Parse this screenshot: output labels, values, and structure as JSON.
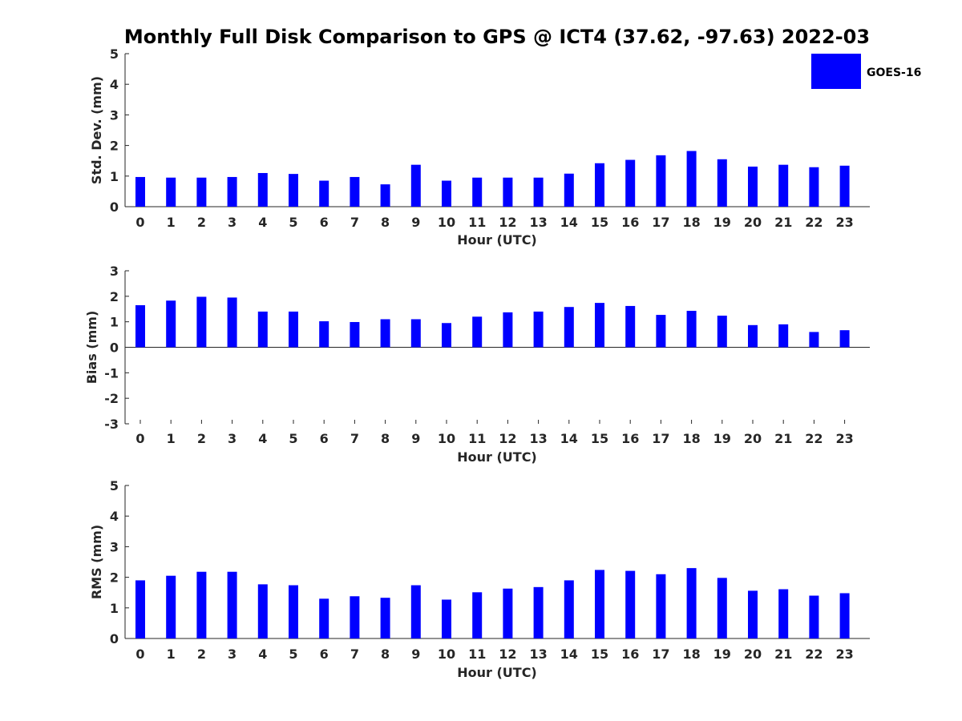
{
  "title": "Monthly Full Disk Comparison to GPS @ ICT4 (37.62, -97.63) 2022-03",
  "legend": {
    "label": "GOES-16",
    "color": "#0000ff"
  },
  "chart_data": [
    {
      "type": "bar",
      "name": "stddev",
      "xlabel": "Hour (UTC)",
      "ylabel": "Std. Dev. (mm)",
      "categories": [
        "0",
        "1",
        "2",
        "3",
        "4",
        "5",
        "6",
        "7",
        "8",
        "9",
        "10",
        "11",
        "12",
        "13",
        "14",
        "15",
        "16",
        "17",
        "18",
        "19",
        "20",
        "21",
        "22",
        "23"
      ],
      "yticks": [
        "0",
        "1",
        "2",
        "3",
        "4",
        "5"
      ],
      "ylim": [
        0,
        5
      ],
      "series": [
        {
          "name": "GOES-16",
          "color": "#0000ff",
          "values": [
            0.97,
            0.95,
            0.95,
            0.97,
            1.1,
            1.07,
            0.85,
            0.97,
            0.73,
            1.37,
            0.85,
            0.95,
            0.95,
            0.95,
            1.08,
            1.42,
            1.53,
            1.68,
            1.82,
            1.55,
            1.31,
            1.37,
            1.29,
            1.34
          ]
        }
      ]
    },
    {
      "type": "bar",
      "name": "bias",
      "xlabel": "Hour (UTC)",
      "ylabel": "Bias (mm)",
      "categories": [
        "0",
        "1",
        "2",
        "3",
        "4",
        "5",
        "6",
        "7",
        "8",
        "9",
        "10",
        "11",
        "12",
        "13",
        "14",
        "15",
        "16",
        "17",
        "18",
        "19",
        "20",
        "21",
        "22",
        "23"
      ],
      "yticks": [
        "-3",
        "-2",
        "-1",
        "0",
        "1",
        "2",
        "3"
      ],
      "ylim": [
        -3,
        3
      ],
      "series": [
        {
          "name": "GOES-16",
          "color": "#0000ff",
          "values": [
            1.65,
            1.83,
            1.98,
            1.95,
            1.4,
            1.4,
            1.02,
            0.99,
            1.1,
            1.1,
            0.95,
            1.2,
            1.37,
            1.4,
            1.58,
            1.74,
            1.62,
            1.27,
            1.43,
            1.24,
            0.87,
            0.9,
            0.6,
            0.67
          ]
        }
      ]
    },
    {
      "type": "bar",
      "name": "rms",
      "xlabel": "Hour (UTC)",
      "ylabel": "RMS (mm)",
      "categories": [
        "0",
        "1",
        "2",
        "3",
        "4",
        "5",
        "6",
        "7",
        "8",
        "9",
        "10",
        "11",
        "12",
        "13",
        "14",
        "15",
        "16",
        "17",
        "18",
        "19",
        "20",
        "21",
        "22",
        "23"
      ],
      "yticks": [
        "0",
        "1",
        "2",
        "3",
        "4",
        "5"
      ],
      "ylim": [
        0,
        5
      ],
      "series": [
        {
          "name": "GOES-16",
          "color": "#0000ff",
          "values": [
            1.9,
            2.05,
            2.18,
            2.18,
            1.77,
            1.74,
            1.3,
            1.38,
            1.33,
            1.74,
            1.27,
            1.51,
            1.63,
            1.68,
            1.9,
            2.24,
            2.21,
            2.1,
            2.3,
            1.98,
            1.56,
            1.61,
            1.4,
            1.48
          ]
        }
      ]
    }
  ]
}
